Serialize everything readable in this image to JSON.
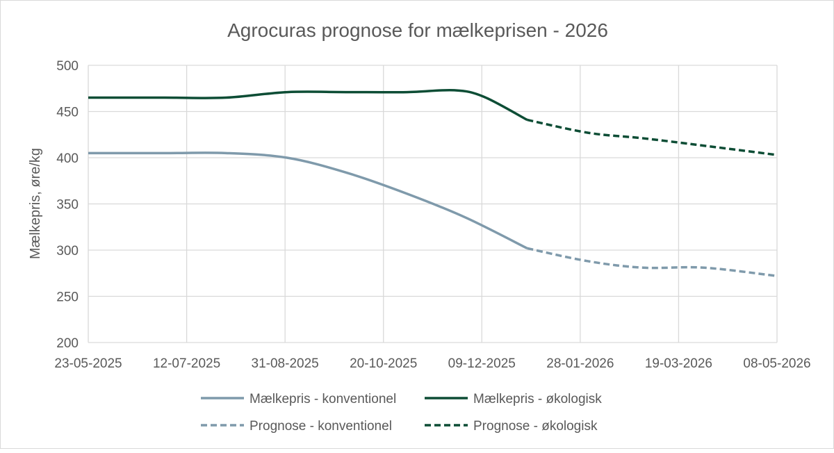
{
  "chart_data": {
    "type": "line",
    "title": "Agrocuras prognose for mælkeprisen - 2026",
    "xlabel": "",
    "ylabel": "Mælkepris, øre/kg",
    "ylim": [
      200,
      500
    ],
    "yticks": [
      200,
      250,
      300,
      350,
      400,
      450,
      500
    ],
    "xlim": [
      "23-05-2025",
      "08-05-2026"
    ],
    "xticks": [
      "23-05-2025",
      "12-07-2025",
      "31-08-2025",
      "20-10-2025",
      "09-12-2025",
      "28-01-2026",
      "19-03-2026",
      "08-05-2026"
    ],
    "grid": true,
    "legend_position": "bottom",
    "series": [
      {
        "name": "Mælkepris - konventionel",
        "color": "#7f9aab",
        "dash": false,
        "points": [
          [
            "23-05-2025",
            405
          ],
          [
            "01-07-2025",
            405
          ],
          [
            "01-08-2025",
            405
          ],
          [
            "01-09-2025",
            400
          ],
          [
            "01-10-2025",
            384
          ],
          [
            "01-11-2025",
            361
          ],
          [
            "01-12-2025",
            335
          ],
          [
            "01-01-2026",
            302
          ]
        ]
      },
      {
        "name": "Mælkepris - økologisk",
        "color": "#0d4d35",
        "dash": false,
        "points": [
          [
            "23-05-2025",
            465
          ],
          [
            "01-07-2025",
            465
          ],
          [
            "01-08-2025",
            465
          ],
          [
            "01-09-2025",
            471
          ],
          [
            "01-10-2025",
            471
          ],
          [
            "01-11-2025",
            471
          ],
          [
            "25-11-2025",
            473
          ],
          [
            "10-12-2025",
            466
          ],
          [
            "01-01-2026",
            441
          ]
        ]
      },
      {
        "name": "Prognose - konventionel",
        "color": "#7f9aab",
        "dash": true,
        "points": [
          [
            "01-01-2026",
            302
          ],
          [
            "01-02-2026",
            288
          ],
          [
            "01-03-2026",
            281
          ],
          [
            "01-04-2026",
            281
          ],
          [
            "08-05-2026",
            272
          ]
        ]
      },
      {
        "name": "Prognose - økologisk",
        "color": "#0d4d35",
        "dash": true,
        "points": [
          [
            "01-01-2026",
            441
          ],
          [
            "01-02-2026",
            427
          ],
          [
            "01-03-2026",
            421
          ],
          [
            "01-04-2026",
            413
          ],
          [
            "08-05-2026",
            403
          ]
        ]
      }
    ]
  }
}
